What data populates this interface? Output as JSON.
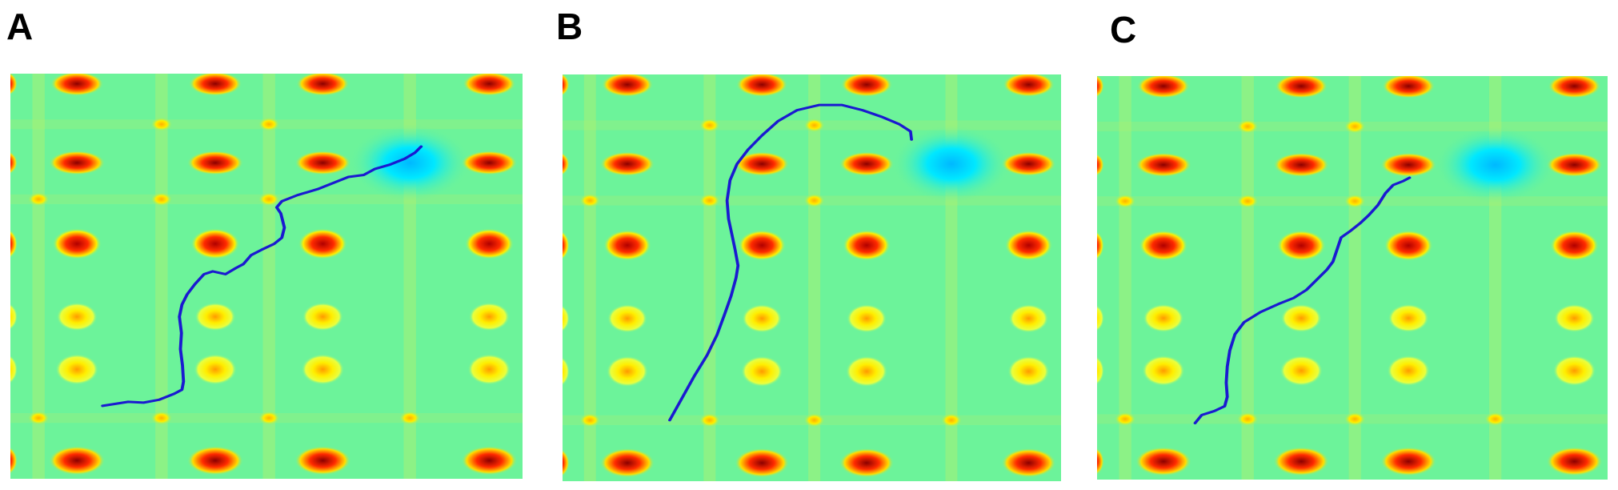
{
  "figure": {
    "panels": [
      {
        "id": "a",
        "label": "A"
      },
      {
        "id": "b",
        "label": "B"
      },
      {
        "id": "c",
        "label": "C"
      }
    ]
  },
  "colors": {
    "background_field": "#6cf39a",
    "peak_strong": "#8b0000",
    "peak_mid": "#ff2a00",
    "peak_weak": "#ffee00",
    "valley": "#00e8ff",
    "trajectory": "#1a1ad0"
  }
}
